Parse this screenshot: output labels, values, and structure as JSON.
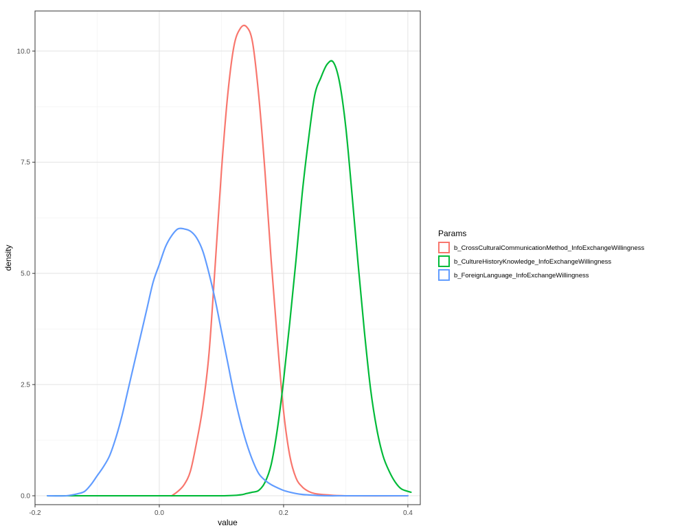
{
  "chart_data": {
    "type": "line",
    "xlabel": "value",
    "ylabel": "density",
    "xlim": [
      -0.2,
      0.42
    ],
    "ylim": [
      -0.2,
      10.9
    ],
    "x_ticks": [
      -0.2,
      0.0,
      0.2,
      0.4
    ],
    "x_tick_labels": [
      "-0.2",
      "0.0",
      "0.2",
      "0.4"
    ],
    "y_ticks": [
      0.0,
      2.5,
      5.0,
      7.5,
      10.0
    ],
    "y_tick_labels": [
      "0.0",
      "2.5",
      "5.0",
      "7.5",
      "10.0"
    ],
    "grid": true,
    "legend": {
      "title": "Params",
      "placement": "right"
    },
    "series": [
      {
        "name": "b_CrossCulturalCommunicationMethod_InfoExchangeWillingness",
        "color": "#F8766D",
        "x": [
          0.02,
          0.03,
          0.04,
          0.05,
          0.06,
          0.07,
          0.08,
          0.09,
          0.1,
          0.11,
          0.12,
          0.13,
          0.14,
          0.15,
          0.16,
          0.17,
          0.18,
          0.19,
          0.2,
          0.21,
          0.22,
          0.23,
          0.24,
          0.25,
          0.27,
          0.3,
          0.4
        ],
        "y": [
          0.0,
          0.1,
          0.25,
          0.55,
          1.2,
          2.0,
          3.2,
          5.2,
          7.3,
          9.0,
          10.1,
          10.5,
          10.55,
          10.2,
          9.0,
          7.3,
          5.3,
          3.5,
          1.9,
          0.9,
          0.4,
          0.2,
          0.1,
          0.05,
          0.02,
          0.0,
          0.0
        ]
      },
      {
        "name": "b_CultureHistoryKnowledge_InfoExchangeWillingness",
        "color": "#00BA38",
        "x": [
          -0.18,
          0.0,
          0.1,
          0.13,
          0.14,
          0.15,
          0.16,
          0.17,
          0.18,
          0.19,
          0.2,
          0.21,
          0.22,
          0.23,
          0.24,
          0.25,
          0.26,
          0.27,
          0.28,
          0.29,
          0.3,
          0.31,
          0.32,
          0.33,
          0.34,
          0.35,
          0.36,
          0.37,
          0.38,
          0.39,
          0.405
        ],
        "y": [
          0.0,
          0.0,
          0.0,
          0.02,
          0.05,
          0.08,
          0.12,
          0.3,
          0.7,
          1.5,
          2.6,
          3.9,
          5.3,
          6.8,
          8.0,
          9.0,
          9.4,
          9.7,
          9.75,
          9.3,
          8.3,
          6.8,
          5.2,
          3.7,
          2.4,
          1.5,
          0.9,
          0.55,
          0.3,
          0.15,
          0.08
        ]
      },
      {
        "name": "b_ForeignLanguage_InfoExchangeWillingness",
        "color": "#619CFF",
        "x": [
          -0.18,
          -0.15,
          -0.13,
          -0.12,
          -0.11,
          -0.1,
          -0.09,
          -0.08,
          -0.07,
          -0.06,
          -0.05,
          -0.04,
          -0.03,
          -0.02,
          -0.01,
          0.0,
          0.01,
          0.02,
          0.03,
          0.04,
          0.05,
          0.06,
          0.07,
          0.08,
          0.09,
          0.1,
          0.11,
          0.12,
          0.13,
          0.14,
          0.15,
          0.16,
          0.17,
          0.18,
          0.19,
          0.2,
          0.21,
          0.22,
          0.23,
          0.24,
          0.25,
          0.27,
          0.3,
          0.35,
          0.4
        ],
        "y": [
          0.0,
          0.0,
          0.05,
          0.1,
          0.25,
          0.45,
          0.65,
          0.9,
          1.3,
          1.8,
          2.4,
          3.0,
          3.6,
          4.2,
          4.8,
          5.2,
          5.6,
          5.85,
          6.0,
          6.0,
          5.95,
          5.8,
          5.5,
          5.0,
          4.4,
          3.7,
          3.0,
          2.3,
          1.7,
          1.2,
          0.8,
          0.5,
          0.35,
          0.25,
          0.18,
          0.12,
          0.08,
          0.05,
          0.03,
          0.02,
          0.01,
          0.0,
          0.0,
          0.0,
          0.0
        ]
      }
    ]
  }
}
